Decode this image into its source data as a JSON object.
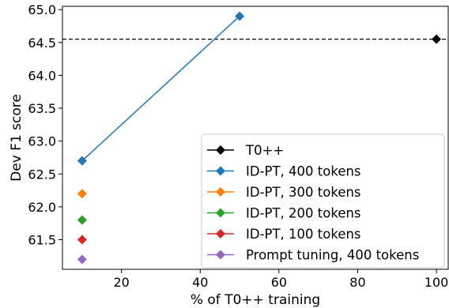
{
  "chart_data": {
    "type": "scatter",
    "xlabel": "% of T0++ training",
    "ylabel": "Dev F1 score",
    "xlim": [
      5,
      103
    ],
    "ylim": [
      61.05,
      65.05
    ],
    "xticks": [
      20,
      40,
      60,
      80,
      100
    ],
    "yticks": [
      61.5,
      62.0,
      62.5,
      63.0,
      63.5,
      64.0,
      64.5,
      65.0
    ],
    "grid": false,
    "legend_position": "bottom-right",
    "reference_line": {
      "y": 64.55,
      "style": "dashed",
      "color": "#000000"
    },
    "series": [
      {
        "name": "T0++",
        "color": "#000000",
        "points": [
          [
            100,
            64.55
          ]
        ],
        "line": false
      },
      {
        "name": "ID-PT, 400 tokens",
        "color": "#1f77b4",
        "points": [
          [
            10,
            62.7
          ],
          [
            50,
            64.9
          ]
        ],
        "line": true
      },
      {
        "name": "ID-PT, 300 tokens",
        "color": "#ff7f0e",
        "points": [
          [
            10,
            62.2
          ]
        ],
        "line": false
      },
      {
        "name": "ID-PT, 200 tokens",
        "color": "#2ca02c",
        "points": [
          [
            10,
            61.8
          ]
        ],
        "line": false
      },
      {
        "name": "ID-PT, 100 tokens",
        "color": "#d62728",
        "points": [
          [
            10,
            61.5
          ]
        ],
        "line": false
      },
      {
        "name": "Prompt tuning, 400 tokens",
        "color": "#9467bd",
        "points": [
          [
            10,
            61.2
          ]
        ],
        "line": false
      }
    ]
  }
}
